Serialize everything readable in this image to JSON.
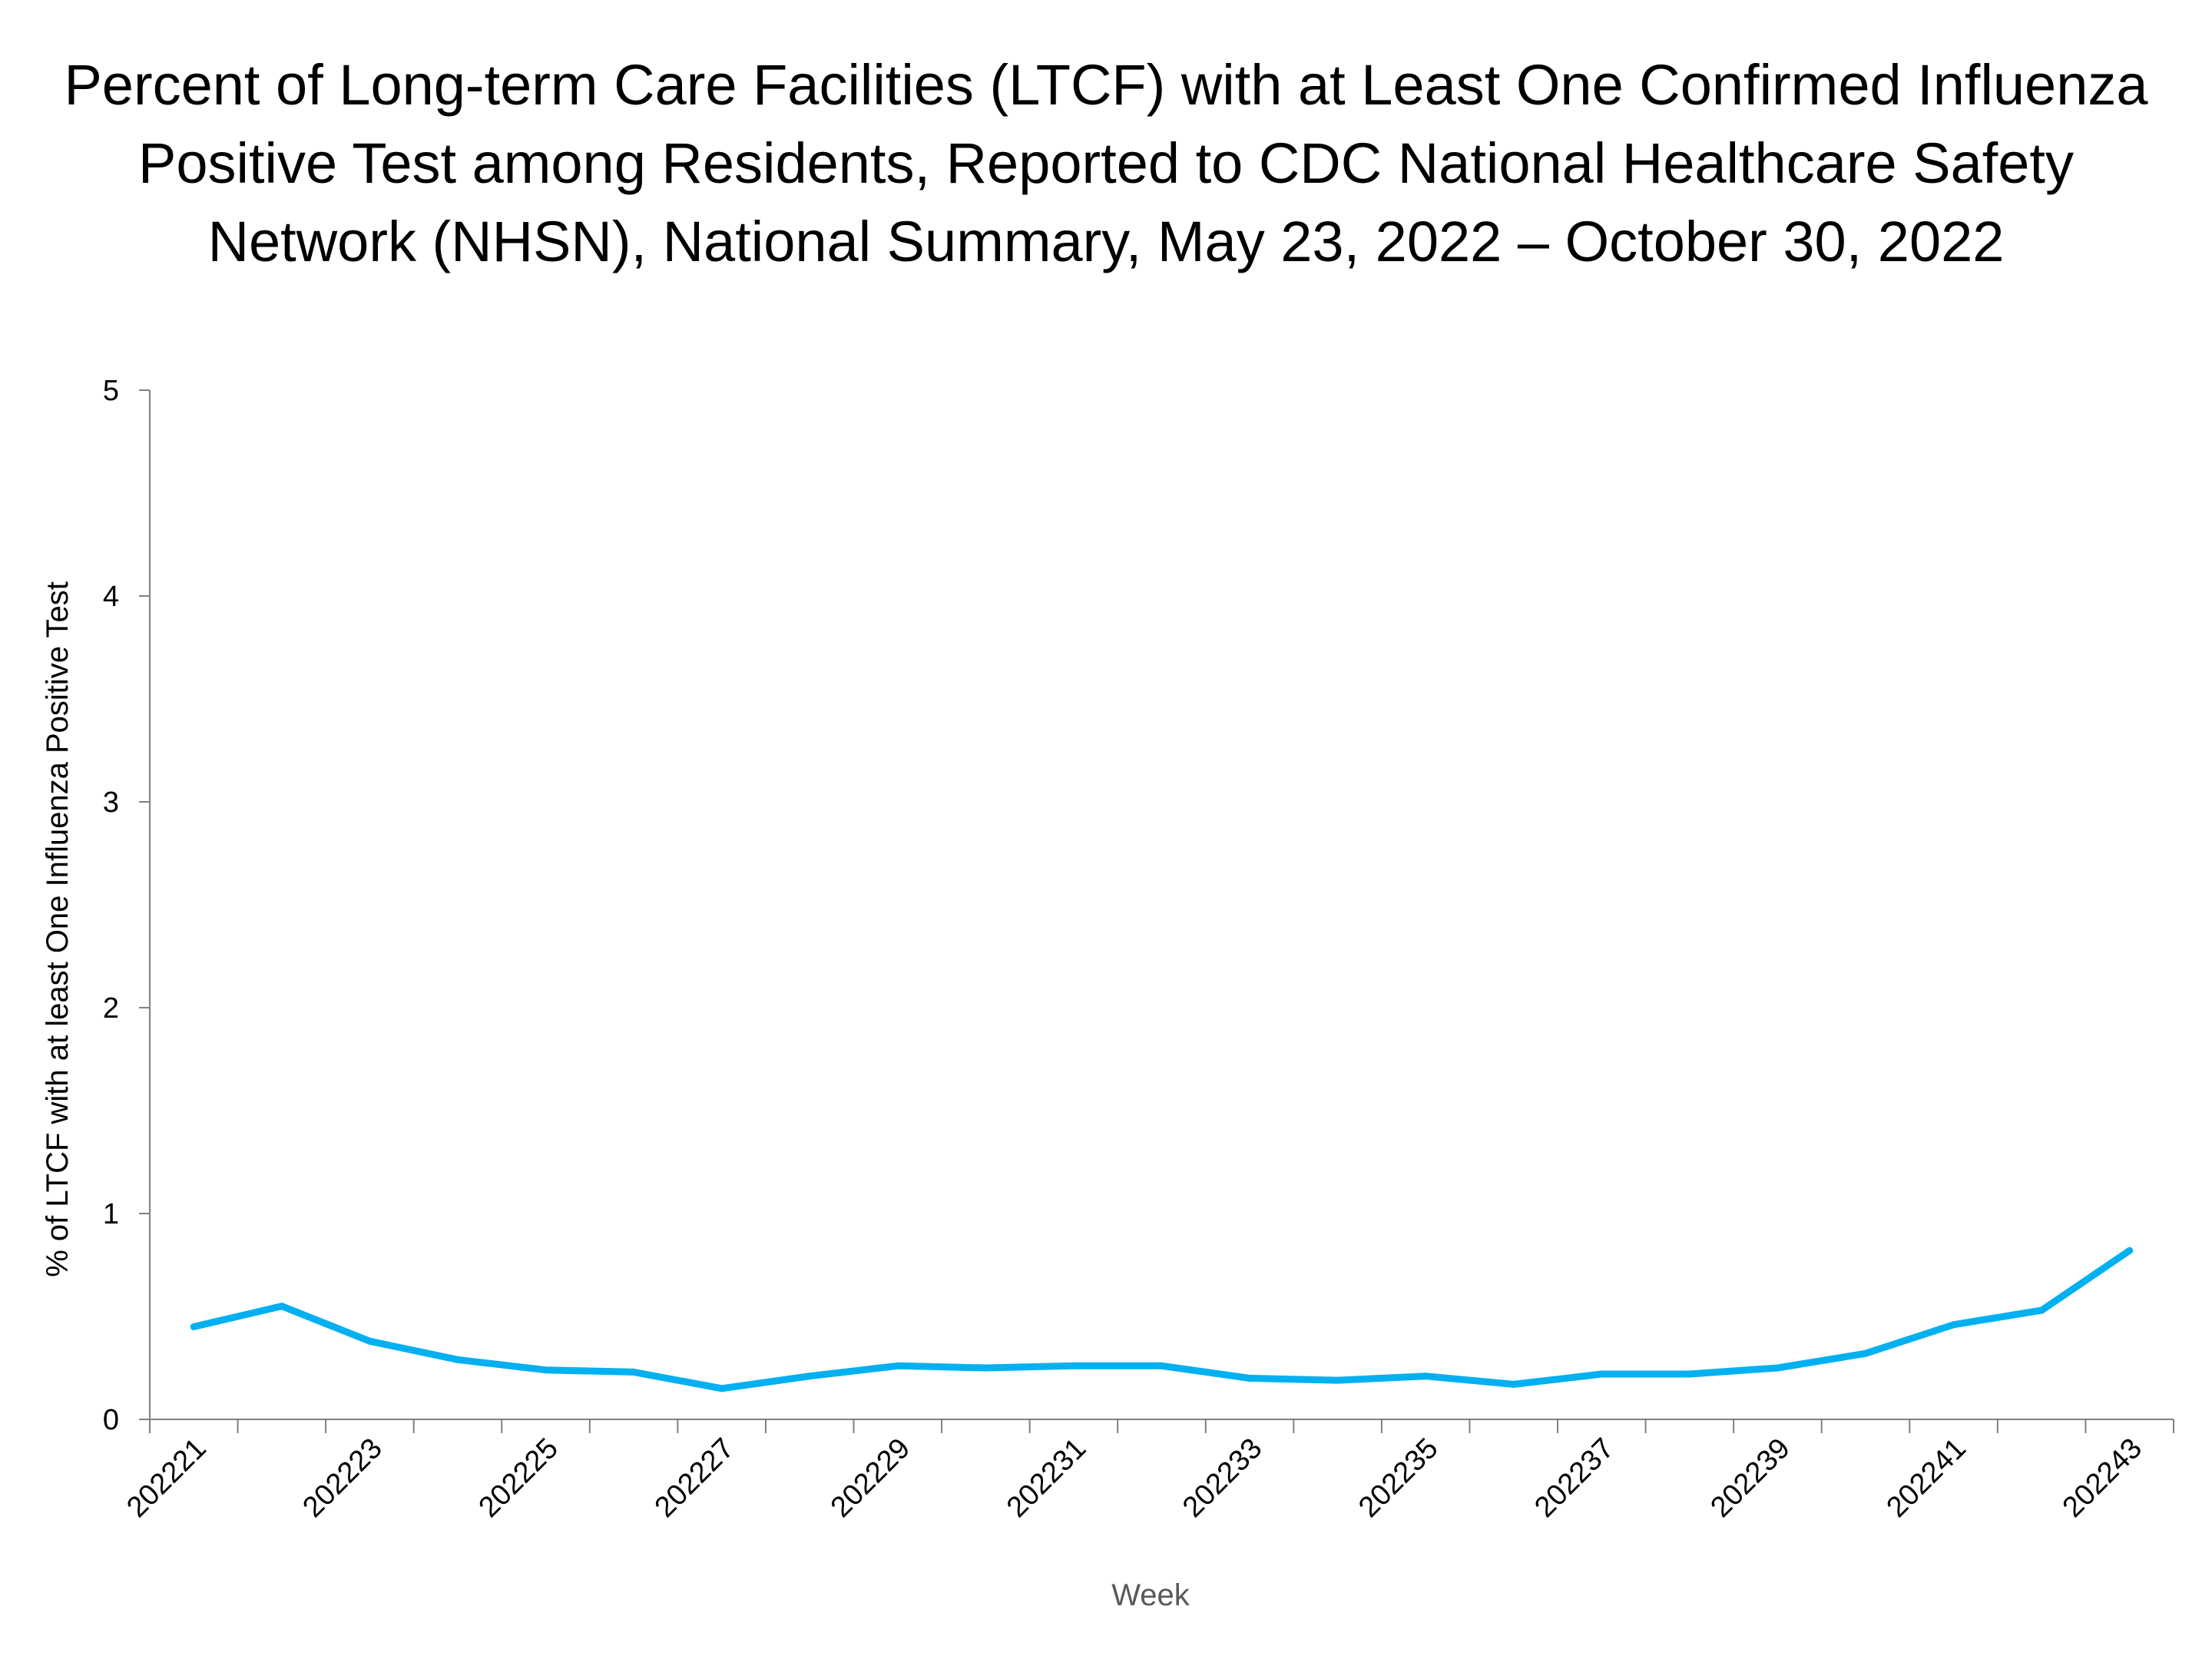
{
  "chart_data": {
    "type": "line",
    "title_lines": [
      "Percent of Long-term Care Facilities (LTCF) with at Least One Confirmed Influenza",
      "Positive Test among Residents, Reported to CDC National Healthcare Safety",
      "Network (NHSN), National Summary, May 23, 2022 – October 30, 2022"
    ],
    "xlabel": "Week",
    "ylabel": "% of LTCF with at least One Influenza Positive Test",
    "ylim": [
      0,
      5
    ],
    "y_ticks": [
      "0",
      "1",
      "2",
      "3",
      "4",
      "5"
    ],
    "x": [
      "202221",
      "202222",
      "202223",
      "202224",
      "202225",
      "202226",
      "202227",
      "202228",
      "202229",
      "202230",
      "202231",
      "202232",
      "202233",
      "202234",
      "202235",
      "202236",
      "202237",
      "202238",
      "202239",
      "202240",
      "202241",
      "202242",
      "202243"
    ],
    "x_tick_labels": [
      "202221",
      "202223",
      "202225",
      "202227",
      "202229",
      "202231",
      "202233",
      "202235",
      "202237",
      "202239",
      "202241",
      "202243"
    ],
    "series": [
      {
        "color": "#00B0F0",
        "values": [
          0.45,
          0.55,
          0.38,
          0.29,
          0.24,
          0.23,
          0.15,
          0.21,
          0.26,
          0.25,
          0.26,
          0.26,
          0.2,
          0.19,
          0.21,
          0.17,
          0.22,
          0.22,
          0.25,
          0.32,
          0.46,
          0.53,
          0.82
        ]
      }
    ],
    "grid": false,
    "legend": "none"
  }
}
